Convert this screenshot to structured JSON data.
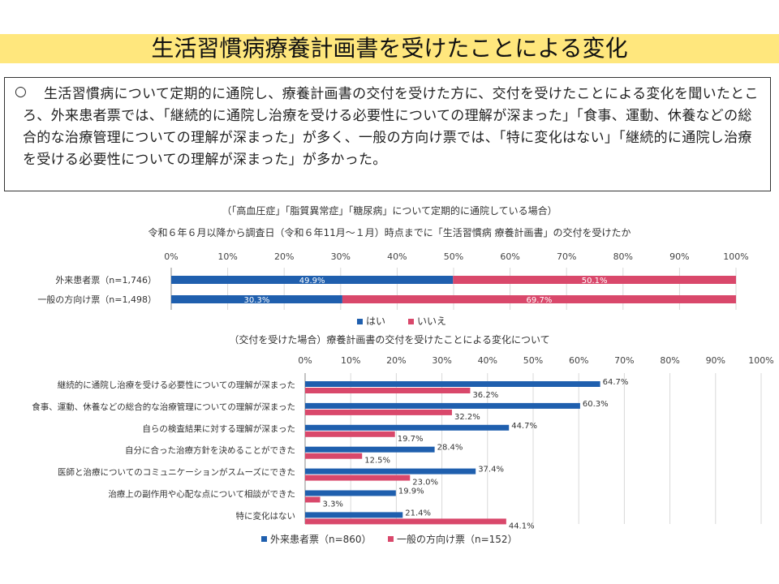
{
  "title": "生活習慣病療養計画書を受けたことによる変化",
  "summary": {
    "mark": "○",
    "text": "生活習慣病について定期的に通院し、療養計画書の交付を受けた方に、交付を受けたことによる変化を聞いたところ、外来患者票では、「継続的に通院し治療を受ける必要性についての理解が深まった」「食事、運動、休養などの総合的な治療管理についての理解が深まった」が多く、一般の方向け票では、「特に変化はない」「継続的に通院し治療を受ける必要性についての理解が深まった」が多かった。"
  },
  "colors": {
    "blue": "#1f5fae",
    "pink": "#d9486b",
    "grid": "#d9d9d9"
  },
  "chart_data": [
    {
      "type": "bar",
      "orientation": "horizontal-stacked",
      "subtitle": "（「高血圧症」「脂質異常症」「糖尿病」について定期的に通院している場合）",
      "title": "令和６年６月以降から調査日（令和６年11月～１月）時点までに「生活習慣病 療養計画書」の交付を受けたか",
      "tick_labels": [
        "0%",
        "10%",
        "20%",
        "30%",
        "40%",
        "50%",
        "60%",
        "70%",
        "80%",
        "90%",
        "100%"
      ],
      "xlim": [
        0,
        100
      ],
      "categories": [
        "外来患者票（n=1,746）",
        "一般の方向け票（n=1,498）"
      ],
      "series": [
        {
          "name": "はい",
          "values": [
            49.9,
            30.3
          ],
          "labels": [
            "49.9%",
            "30.3%"
          ],
          "color": "#1f5fae"
        },
        {
          "name": "いいえ",
          "values": [
            50.1,
            69.7
          ],
          "labels": [
            "50.1%",
            "69.7%"
          ],
          "color": "#d9486b"
        }
      ],
      "legend_position": "bottom"
    },
    {
      "type": "bar",
      "orientation": "horizontal-grouped",
      "title": "（交付を受けた場合）療養計画書の交付を受けたことによる変化について",
      "tick_labels": [
        "0%",
        "10%",
        "20%",
        "30%",
        "40%",
        "50%",
        "60%",
        "70%",
        "80%",
        "90%",
        "100%"
      ],
      "xlim": [
        0,
        100
      ],
      "categories": [
        "継続的に通院し治療を受ける必要性についての理解が深まった",
        "食事、運動、休養などの総合的な治療管理についての理解が深まった",
        "自らの検査結果に対する理解が深まった",
        "自分に合った治療方針を決めることができた",
        "医師と治療についてのコミュニケーションがスムーズにできた",
        "治療上の副作用や心配な点について相談ができた",
        "特に変化はない"
      ],
      "series": [
        {
          "name": "外来患者票（n=860）",
          "values": [
            64.7,
            60.3,
            44.7,
            28.4,
            37.4,
            19.9,
            21.4
          ],
          "labels": [
            "64.7%",
            "60.3%",
            "44.7%",
            "28.4%",
            "37.4%",
            "19.9%",
            "21.4%"
          ],
          "color": "#1f5fae"
        },
        {
          "name": "一般の方向け票（n=152）",
          "values": [
            36.2,
            32.2,
            19.7,
            12.5,
            23.0,
            3.3,
            44.1
          ],
          "labels": [
            "36.2%",
            "32.2%",
            "19.7%",
            "12.5%",
            "23.0%",
            "3.3%",
            "44.1%"
          ],
          "color": "#d9486b"
        }
      ],
      "legend_position": "bottom"
    }
  ]
}
